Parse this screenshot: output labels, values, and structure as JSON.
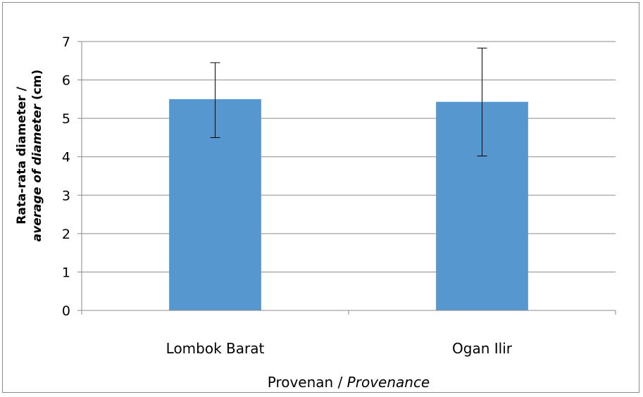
{
  "chart_data": {
    "type": "bar",
    "categories": [
      "Lombok Barat",
      "Ogan Ilir"
    ],
    "values": [
      5.5,
      5.43
    ],
    "error_bars": [
      {
        "low": 4.5,
        "high": 6.45
      },
      {
        "low": 4.02,
        "high": 6.83
      }
    ],
    "ylim": [
      0,
      7
    ],
    "yticks": [
      "0",
      "1",
      "2",
      "3",
      "4",
      "5",
      "6",
      "7"
    ],
    "xlabel": {
      "main": "Provenan / ",
      "italic": "Provenance"
    },
    "ylabel": {
      "line1": "Rata-rata diameter /",
      "line2_italic": "average of diameter",
      "line2_rest": " (cm)"
    },
    "grid": true,
    "legend": "none",
    "colors": {
      "bar": "#5797cf",
      "grid": "#8a8a8a",
      "axis": "#8a8a8a",
      "error": "#000000"
    }
  }
}
